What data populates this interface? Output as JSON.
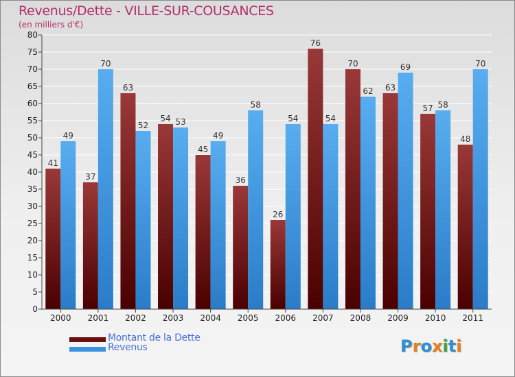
{
  "chart_data": {
    "type": "bar",
    "title": "Revenus/Dette - VILLE-SUR-COUSANCES",
    "subtitle": "(en milliers d'€)",
    "categories": [
      "2000",
      "2001",
      "2002",
      "2003",
      "2004",
      "2005",
      "2006",
      "2007",
      "2008",
      "2009",
      "2010",
      "2011"
    ],
    "series": [
      {
        "name": "Montant de la Dette",
        "color": "#7a1a1a",
        "values": [
          41,
          37,
          63,
          54,
          45,
          36,
          26,
          76,
          70,
          63,
          57,
          48
        ]
      },
      {
        "name": "Revenus",
        "color": "#3a93e0",
        "values": [
          49,
          70,
          52,
          53,
          49,
          58,
          54,
          54,
          62,
          69,
          58,
          70
        ]
      }
    ],
    "ylim": [
      0,
      80
    ],
    "yticks": [
      0,
      5,
      10,
      15,
      20,
      25,
      30,
      35,
      40,
      45,
      50,
      55,
      60,
      65,
      70,
      75,
      80
    ],
    "grid": true,
    "legend_position": "bottom-left"
  },
  "legend": [
    {
      "label": "Montant de la Dette",
      "color": "#6a0f0f"
    },
    {
      "label": "Revenus",
      "color": "#3a93e0"
    }
  ],
  "logo": {
    "letters": [
      "P",
      "r",
      "o",
      "x",
      "i",
      "t",
      "i"
    ],
    "colors": [
      "#2e8fd6",
      "#e8821e",
      "#2e8fd6",
      "#e8821e",
      "#3aa53a",
      "#2e8fd6",
      "#e8821e"
    ]
  }
}
